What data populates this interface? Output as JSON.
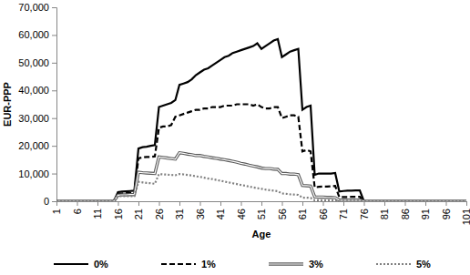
{
  "chart_data": {
    "type": "line",
    "x_label": "Age",
    "y_label": "EUR-PPP",
    "x": [
      1,
      2,
      3,
      4,
      5,
      6,
      7,
      8,
      9,
      10,
      11,
      12,
      13,
      14,
      15,
      16,
      17,
      18,
      19,
      20,
      21,
      22,
      23,
      24,
      25,
      26,
      27,
      28,
      29,
      30,
      31,
      32,
      33,
      34,
      35,
      36,
      37,
      38,
      39,
      40,
      41,
      42,
      43,
      44,
      45,
      46,
      47,
      48,
      49,
      50,
      51,
      52,
      53,
      54,
      55,
      56,
      57,
      58,
      59,
      60,
      61,
      62,
      63,
      64,
      65,
      66,
      67,
      68,
      69,
      70,
      71,
      72,
      73,
      74,
      75,
      76,
      77,
      78,
      79,
      80,
      81,
      82,
      83,
      84,
      85,
      86,
      87,
      88,
      89,
      90,
      91,
      92,
      93,
      94,
      95,
      96,
      97,
      98,
      99,
      100,
      101
    ],
    "series": [
      {
        "name": "0%",
        "color": "#000000",
        "line_style": "solid",
        "values": [
          0,
          0,
          0,
          0,
          0,
          0,
          0,
          0,
          0,
          0,
          0,
          0,
          0,
          0,
          0,
          3300,
          3500,
          3600,
          3700,
          3800,
          19000,
          19500,
          19700,
          20000,
          20300,
          34000,
          34500,
          35000,
          35500,
          36500,
          42000,
          42500,
          43000,
          44000,
          45500,
          46500,
          47500,
          48000,
          49000,
          50000,
          51000,
          52000,
          52500,
          53500,
          54000,
          54500,
          55000,
          55500,
          56000,
          57000,
          55000,
          56000,
          57000,
          58000,
          58500,
          52000,
          53000,
          54000,
          54500,
          55000,
          33000,
          34000,
          34500,
          9500,
          10000,
          10000,
          10000,
          10000,
          10200,
          3500,
          3700,
          3800,
          3800,
          3900,
          3900,
          0,
          0,
          0,
          0,
          0,
          0,
          0,
          0,
          0,
          0,
          0,
          0,
          0,
          0,
          0,
          0,
          0,
          0,
          0,
          0,
          0,
          0,
          0,
          0,
          0,
          0
        ]
      },
      {
        "name": "1%",
        "color": "#000000",
        "line_style": "dashed",
        "values": [
          0,
          0,
          0,
          0,
          0,
          0,
          0,
          0,
          0,
          0,
          0,
          0,
          0,
          0,
          0,
          2700,
          2800,
          2900,
          3000,
          3000,
          15500,
          15800,
          16000,
          16000,
          16200,
          26500,
          27000,
          27000,
          27500,
          30500,
          31000,
          31500,
          32000,
          32500,
          33000,
          33000,
          33500,
          33500,
          34000,
          34000,
          34000,
          34500,
          34500,
          34500,
          35000,
          35000,
          35000,
          35000,
          34500,
          35000,
          34000,
          33500,
          33500,
          34000,
          34000,
          30000,
          30500,
          31000,
          31000,
          30500,
          18000,
          18500,
          18000,
          5000,
          5200,
          5300,
          5300,
          5400,
          5500,
          1500,
          1500,
          1500,
          1600,
          1600,
          1600,
          0,
          0,
          0,
          0,
          0,
          0,
          0,
          0,
          0,
          0,
          0,
          0,
          0,
          0,
          0,
          0,
          0,
          0,
          0,
          0,
          0,
          0,
          0,
          0,
          0,
          0
        ]
      },
      {
        "name": "3%",
        "color": "#595959",
        "line_style": "double",
        "values": [
          0,
          0,
          0,
          0,
          0,
          0,
          0,
          0,
          0,
          0,
          0,
          0,
          0,
          0,
          0,
          2200,
          2300,
          2300,
          2400,
          2400,
          10500,
          10300,
          10200,
          10100,
          10000,
          16000,
          15800,
          15600,
          15400,
          15200,
          17500,
          17300,
          17000,
          16800,
          16500,
          16500,
          16200,
          16000,
          15700,
          15500,
          15200,
          15000,
          14700,
          14400,
          14100,
          13700,
          13400,
          13000,
          12700,
          12400,
          12000,
          11800,
          11800,
          11600,
          11500,
          10000,
          10000,
          9800,
          9800,
          9600,
          5700,
          5600,
          5500,
          1600,
          1500,
          1500,
          1400,
          1400,
          1300,
          400,
          400,
          400,
          400,
          400,
          400,
          0,
          0,
          0,
          0,
          0,
          0,
          0,
          0,
          0,
          0,
          0,
          0,
          0,
          0,
          0,
          0,
          0,
          0,
          0,
          0,
          0,
          0,
          0,
          0,
          0,
          0
        ]
      },
      {
        "name": "5%",
        "color": "#808080",
        "line_style": "dotted",
        "values": [
          0,
          0,
          0,
          0,
          0,
          0,
          0,
          0,
          0,
          0,
          0,
          0,
          0,
          0,
          0,
          1800,
          1800,
          1800,
          1800,
          1800,
          7000,
          6800,
          6600,
          6500,
          6300,
          9800,
          9700,
          9600,
          9500,
          9400,
          9800,
          9700,
          9500,
          9300,
          9000,
          8800,
          8500,
          8200,
          8000,
          7700,
          7400,
          7100,
          6800,
          6500,
          6200,
          5900,
          5600,
          5300,
          5000,
          4700,
          4500,
          4200,
          4000,
          3800,
          3600,
          2800,
          2700,
          2500,
          2400,
          2300,
          1300,
          1300,
          1200,
          350,
          350,
          330,
          320,
          310,
          300,
          100,
          100,
          100,
          100,
          100,
          100,
          0,
          0,
          0,
          0,
          0,
          0,
          0,
          0,
          0,
          0,
          0,
          0,
          0,
          0,
          0,
          0,
          0,
          0,
          0,
          0,
          0,
          0,
          0,
          0,
          0,
          0
        ]
      }
    ],
    "xlim": [
      1,
      101
    ],
    "xticks": [
      1,
      6,
      11,
      16,
      21,
      26,
      31,
      36,
      41,
      46,
      51,
      56,
      61,
      66,
      71,
      76,
      81,
      86,
      91,
      96,
      101
    ],
    "ylim": [
      0,
      70000
    ],
    "yticks": [
      0,
      {
        "value": 10000,
        "label": "10,000"
      },
      {
        "value": 20000,
        "label": "20,000"
      },
      {
        "value": 30000,
        "label": "30,000"
      },
      {
        "value": 40000,
        "label": "40,000"
      },
      {
        "value": 50000,
        "label": "50,000"
      },
      {
        "value": 60000,
        "label": "60,000"
      },
      {
        "value": 70000,
        "label": "70,000"
      }
    ],
    "grid": false,
    "legend": "bottom"
  }
}
